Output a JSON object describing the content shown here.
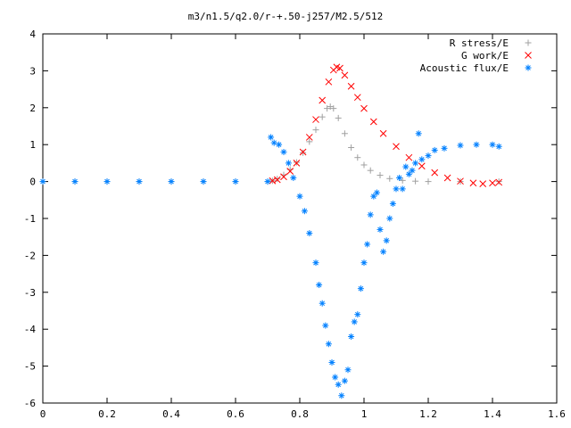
{
  "chart_data": {
    "type": "scatter",
    "title": "m3/n1.5/q2.0/r-+.50-j257/M2.5/512",
    "xlabel": "",
    "ylabel": "",
    "xlim": [
      0,
      1.6
    ],
    "ylim": [
      -6,
      4
    ],
    "x_ticks": [
      0,
      0.2,
      0.4,
      0.6,
      0.8,
      1,
      1.2,
      1.4,
      1.6
    ],
    "x_tick_labels": [
      "0",
      "0.2",
      "0.4",
      "0.6",
      "0.8",
      "1",
      "1.2",
      "1.4",
      "1.6"
    ],
    "y_ticks": [
      -6,
      -5,
      -4,
      -3,
      -2,
      -1,
      0,
      1,
      2,
      3,
      4
    ],
    "y_tick_labels": [
      "-6",
      "-5",
      "-4",
      "-3",
      "-2",
      "-1",
      "0",
      "1",
      "2",
      "3",
      "4"
    ],
    "grid": false,
    "legend": "top-right",
    "series": [
      {
        "name": "R stress/E",
        "marker": "plus",
        "color": "#a0a0a0",
        "points": [
          [
            0.0,
            0
          ],
          [
            0.1,
            0
          ],
          [
            0.2,
            0
          ],
          [
            0.3,
            0
          ],
          [
            0.4,
            0
          ],
          [
            0.5,
            0
          ],
          [
            0.6,
            0
          ],
          [
            0.7,
            0
          ],
          [
            0.715,
            0.02
          ],
          [
            0.73,
            0.07
          ],
          [
            0.75,
            0.18
          ],
          [
            0.77,
            0.33
          ],
          [
            0.79,
            0.52
          ],
          [
            0.81,
            0.78
          ],
          [
            0.83,
            1.08
          ],
          [
            0.85,
            1.4
          ],
          [
            0.87,
            1.75
          ],
          [
            0.885,
            1.98
          ],
          [
            0.895,
            2.03
          ],
          [
            0.905,
            1.98
          ],
          [
            0.92,
            1.72
          ],
          [
            0.94,
            1.3
          ],
          [
            0.96,
            0.92
          ],
          [
            0.98,
            0.65
          ],
          [
            1.0,
            0.45
          ],
          [
            1.02,
            0.3
          ],
          [
            1.05,
            0.17
          ],
          [
            1.08,
            0.08
          ],
          [
            1.12,
            0.03
          ],
          [
            1.16,
            0.01
          ],
          [
            1.2,
            0
          ],
          [
            1.3,
            0
          ],
          [
            1.42,
            0
          ]
        ]
      },
      {
        "name": "G work/E",
        "marker": "cross",
        "color": "#ff0000",
        "points": [
          [
            0.715,
            0.02
          ],
          [
            0.73,
            0.05
          ],
          [
            0.75,
            0.13
          ],
          [
            0.77,
            0.28
          ],
          [
            0.79,
            0.5
          ],
          [
            0.81,
            0.8
          ],
          [
            0.83,
            1.2
          ],
          [
            0.85,
            1.68
          ],
          [
            0.87,
            2.2
          ],
          [
            0.89,
            2.7
          ],
          [
            0.905,
            3.02
          ],
          [
            0.915,
            3.1
          ],
          [
            0.925,
            3.07
          ],
          [
            0.94,
            2.88
          ],
          [
            0.96,
            2.58
          ],
          [
            0.98,
            2.28
          ],
          [
            1.0,
            1.98
          ],
          [
            1.03,
            1.62
          ],
          [
            1.06,
            1.3
          ],
          [
            1.1,
            0.95
          ],
          [
            1.14,
            0.65
          ],
          [
            1.18,
            0.42
          ],
          [
            1.22,
            0.24
          ],
          [
            1.26,
            0.1
          ],
          [
            1.3,
            0.01
          ],
          [
            1.34,
            -0.04
          ],
          [
            1.37,
            -0.06
          ],
          [
            1.4,
            -0.04
          ],
          [
            1.42,
            -0.02
          ]
        ]
      },
      {
        "name": "Acoustic flux/E",
        "marker": "star",
        "color": "#0080ff",
        "points": [
          [
            0.0,
            0
          ],
          [
            0.1,
            0
          ],
          [
            0.2,
            0
          ],
          [
            0.3,
            0
          ],
          [
            0.4,
            0
          ],
          [
            0.5,
            0
          ],
          [
            0.6,
            0
          ],
          [
            0.7,
            0
          ],
          [
            0.71,
            1.2
          ],
          [
            0.72,
            1.05
          ],
          [
            0.735,
            1.0
          ],
          [
            0.75,
            0.8
          ],
          [
            0.765,
            0.5
          ],
          [
            0.78,
            0.1
          ],
          [
            0.8,
            -0.4
          ],
          [
            0.815,
            -0.8
          ],
          [
            0.83,
            -1.4
          ],
          [
            0.85,
            -2.2
          ],
          [
            0.86,
            -2.8
          ],
          [
            0.87,
            -3.3
          ],
          [
            0.88,
            -3.9
          ],
          [
            0.89,
            -4.4
          ],
          [
            0.9,
            -4.9
          ],
          [
            0.91,
            -5.3
          ],
          [
            0.92,
            -5.5
          ],
          [
            0.93,
            -5.8
          ],
          [
            0.94,
            -5.4
          ],
          [
            0.95,
            -5.1
          ],
          [
            0.96,
            -4.2
          ],
          [
            0.97,
            -3.8
          ],
          [
            0.98,
            -3.6
          ],
          [
            0.99,
            -2.9
          ],
          [
            1.0,
            -2.2
          ],
          [
            1.01,
            -1.7
          ],
          [
            1.02,
            -0.9
          ],
          [
            1.03,
            -0.4
          ],
          [
            1.04,
            -0.3
          ],
          [
            1.05,
            -1.3
          ],
          [
            1.06,
            -1.9
          ],
          [
            1.07,
            -1.6
          ],
          [
            1.08,
            -1.0
          ],
          [
            1.09,
            -0.6
          ],
          [
            1.1,
            -0.2
          ],
          [
            1.11,
            0.1
          ],
          [
            1.12,
            -0.2
          ],
          [
            1.13,
            0.4
          ],
          [
            1.14,
            0.2
          ],
          [
            1.15,
            0.3
          ],
          [
            1.16,
            0.5
          ],
          [
            1.17,
            1.3
          ],
          [
            1.18,
            0.6
          ],
          [
            1.2,
            0.7
          ],
          [
            1.22,
            0.85
          ],
          [
            1.25,
            0.9
          ],
          [
            1.3,
            0.98
          ],
          [
            1.35,
            1.0
          ],
          [
            1.4,
            1.0
          ],
          [
            1.42,
            0.95
          ]
        ]
      }
    ]
  }
}
